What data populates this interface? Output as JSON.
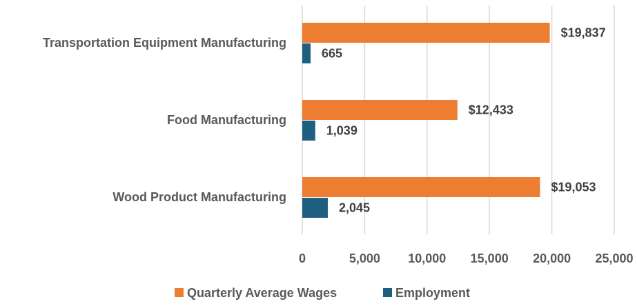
{
  "chart_data": {
    "type": "bar",
    "orientation": "horizontal",
    "categories": [
      "Transportation Equipment Manufacturing",
      "Food Manufacturing",
      "Wood Product Manufacturing"
    ],
    "series": [
      {
        "name": "Quarterly Average Wages",
        "color": "#ED7D31",
        "values": [
          19837,
          12433,
          19053
        ],
        "labels": [
          "$19,837",
          "$12,433",
          "$19,053"
        ]
      },
      {
        "name": "Employment",
        "color": "#1F5F7F",
        "values": [
          665,
          1039,
          2045
        ],
        "labels": [
          "665",
          "1,039",
          "2,045"
        ]
      }
    ],
    "xlim": [
      0,
      25000
    ],
    "xticks": [
      0,
      5000,
      10000,
      15000,
      20000,
      25000
    ],
    "xtick_labels": [
      "0",
      "5,000",
      "10,000",
      "15,000",
      "20,000",
      "25,000"
    ],
    "title": "",
    "xlabel": "",
    "ylabel": "",
    "grid": "vertical",
    "legend_position": "bottom"
  }
}
